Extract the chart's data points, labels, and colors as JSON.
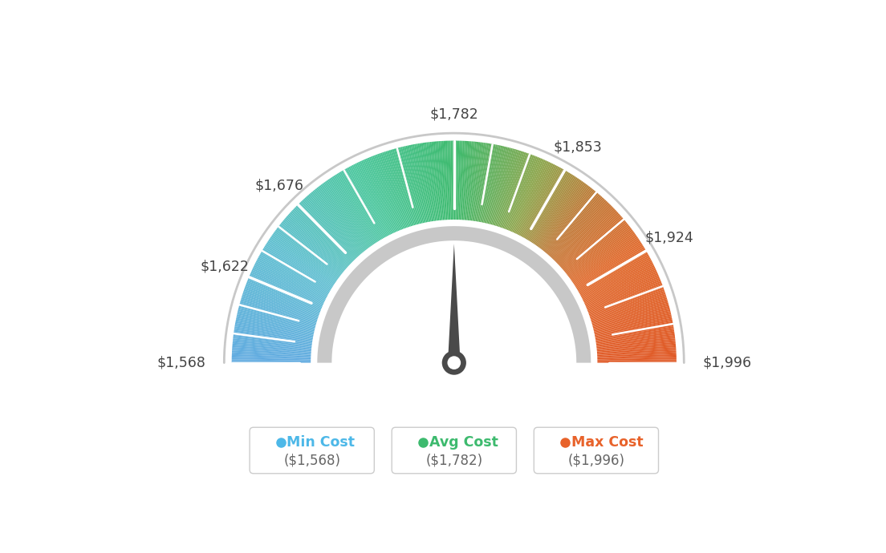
{
  "min_val": 1568,
  "max_val": 1996,
  "avg_val": 1782,
  "tick_labels": [
    "$1,568",
    "$1,622",
    "$1,676",
    "$1,782",
    "$1,853",
    "$1,924",
    "$1,996"
  ],
  "tick_values": [
    1568,
    1622,
    1676,
    1782,
    1853,
    1924,
    1996
  ],
  "legend": [
    {
      "label": "Min Cost",
      "value": "($1,568)",
      "color": "#4db8e8"
    },
    {
      "label": "Avg Cost",
      "value": "($1,782)",
      "color": "#3dba6e"
    },
    {
      "label": "Max Cost",
      "value": "($1,996)",
      "color": "#e8622a"
    }
  ],
  "background_color": "#ffffff",
  "color_stops": [
    [
      0.0,
      [
        0.38,
        0.67,
        0.88
      ]
    ],
    [
      0.18,
      [
        0.38,
        0.75,
        0.82
      ]
    ],
    [
      0.35,
      [
        0.3,
        0.78,
        0.62
      ]
    ],
    [
      0.5,
      [
        0.24,
        0.73,
        0.43
      ]
    ],
    [
      0.63,
      [
        0.55,
        0.65,
        0.3
      ]
    ],
    [
      0.72,
      [
        0.75,
        0.48,
        0.22
      ]
    ],
    [
      0.82,
      [
        0.88,
        0.42,
        0.18
      ]
    ],
    [
      1.0,
      [
        0.88,
        0.35,
        0.15
      ]
    ]
  ]
}
